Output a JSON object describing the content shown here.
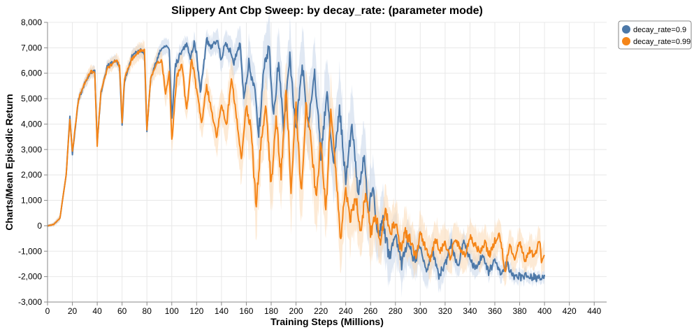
{
  "chart_data": {
    "type": "line",
    "title": "Slippery Ant Cbp Sweep: by decay_rate: (parameter mode)",
    "xlabel": "Training Steps (Millions)",
    "ylabel": "Charts/Mean Episodic Return",
    "xlim": [
      0,
      450
    ],
    "ylim": [
      -3000,
      8000
    ],
    "x_ticks": [
      "0",
      "20",
      "40",
      "60",
      "80",
      "100",
      "120",
      "140",
      "160",
      "180",
      "200",
      "220",
      "240",
      "260",
      "280",
      "300",
      "320",
      "340",
      "360",
      "380",
      "400",
      "420",
      "440"
    ],
    "y_ticks": [
      "-3,000",
      "-2,000",
      "-1,000",
      "0",
      "1,000",
      "2,000",
      "3,000",
      "4,000",
      "5,000",
      "6,000",
      "7,000",
      "8,000"
    ],
    "grid": true,
    "legend_position": "top-right",
    "series": [
      {
        "name": "decay_rate=0.9",
        "color": "#4c78a8",
        "band_color": "#c6d6ea",
        "points": [
          [
            0,
            0
          ],
          [
            5,
            50
          ],
          [
            10,
            300
          ],
          [
            15,
            2000
          ],
          [
            18,
            4300
          ],
          [
            20,
            2800
          ],
          [
            25,
            5000
          ],
          [
            30,
            5600
          ],
          [
            35,
            6000
          ],
          [
            38,
            6100
          ],
          [
            40,
            3300
          ],
          [
            43,
            5200
          ],
          [
            48,
            6300
          ],
          [
            55,
            6500
          ],
          [
            58,
            6200
          ],
          [
            60,
            3900
          ],
          [
            62,
            5700
          ],
          [
            68,
            6700
          ],
          [
            75,
            6900
          ],
          [
            78,
            6800
          ],
          [
            80,
            3700
          ],
          [
            83,
            5800
          ],
          [
            90,
            6800
          ],
          [
            95,
            7100
          ],
          [
            98,
            6900
          ],
          [
            100,
            4200
          ],
          [
            103,
            6300
          ],
          [
            108,
            6900
          ],
          [
            112,
            7200
          ],
          [
            115,
            6600
          ],
          [
            118,
            7200
          ],
          [
            120,
            6800
          ],
          [
            123,
            5200
          ],
          [
            128,
            7300
          ],
          [
            132,
            7000
          ],
          [
            137,
            7300
          ],
          [
            140,
            6500
          ],
          [
            143,
            7200
          ],
          [
            148,
            6800
          ],
          [
            150,
            6400
          ],
          [
            155,
            7200
          ],
          [
            158,
            5000
          ],
          [
            162,
            6400
          ],
          [
            166,
            5600
          ],
          [
            170,
            3600
          ],
          [
            174,
            6000
          ],
          [
            178,
            7100
          ],
          [
            182,
            4300
          ],
          [
            186,
            6500
          ],
          [
            190,
            3800
          ],
          [
            195,
            6600
          ],
          [
            200,
            3700
          ],
          [
            205,
            6300
          ],
          [
            210,
            4000
          ],
          [
            215,
            6000
          ],
          [
            220,
            2800
          ],
          [
            225,
            5200
          ],
          [
            230,
            2400
          ],
          [
            235,
            4600
          ],
          [
            240,
            1800
          ],
          [
            245,
            4000
          ],
          [
            250,
            1200
          ],
          [
            255,
            2800
          ],
          [
            258,
            500
          ],
          [
            262,
            1500
          ],
          [
            266,
            -500
          ],
          [
            270,
            200
          ],
          [
            275,
            -1200
          ],
          [
            280,
            -300
          ],
          [
            285,
            -1500
          ],
          [
            290,
            -600
          ],
          [
            295,
            -1300
          ],
          [
            300,
            -900
          ],
          [
            305,
            -1800
          ],
          [
            310,
            -1000
          ],
          [
            315,
            -2000
          ],
          [
            320,
            -1500
          ],
          [
            325,
            -700
          ],
          [
            330,
            -1600
          ],
          [
            335,
            -600
          ],
          [
            340,
            -1300
          ],
          [
            345,
            -1700
          ],
          [
            350,
            -1100
          ],
          [
            355,
            -1800
          ],
          [
            360,
            -1400
          ],
          [
            365,
            -1900
          ],
          [
            370,
            -1500
          ],
          [
            375,
            -2000
          ],
          [
            380,
            -2000
          ],
          [
            385,
            -2000
          ],
          [
            390,
            -2000
          ],
          [
            395,
            -2050
          ],
          [
            400,
            -2000
          ]
        ],
        "band_width": [
          [
            0,
            30
          ],
          [
            20,
            200
          ],
          [
            60,
            200
          ],
          [
            100,
            300
          ],
          [
            140,
            400
          ],
          [
            160,
            900
          ],
          [
            200,
            1300
          ],
          [
            240,
            1400
          ],
          [
            280,
            900
          ],
          [
            320,
            500
          ],
          [
            360,
            300
          ],
          [
            400,
            200
          ]
        ]
      },
      {
        "name": "decay_rate=0.99",
        "color": "#f58518",
        "band_color": "#fbd9b3",
        "points": [
          [
            0,
            0
          ],
          [
            5,
            50
          ],
          [
            10,
            300
          ],
          [
            15,
            2000
          ],
          [
            18,
            4200
          ],
          [
            20,
            2900
          ],
          [
            25,
            5000
          ],
          [
            30,
            5600
          ],
          [
            35,
            6100
          ],
          [
            38,
            6000
          ],
          [
            40,
            3200
          ],
          [
            43,
            5300
          ],
          [
            48,
            6200
          ],
          [
            55,
            6500
          ],
          [
            58,
            6300
          ],
          [
            60,
            4100
          ],
          [
            62,
            5800
          ],
          [
            68,
            6600
          ],
          [
            75,
            6900
          ],
          [
            78,
            6900
          ],
          [
            80,
            3800
          ],
          [
            83,
            5800
          ],
          [
            88,
            6400
          ],
          [
            92,
            6500
          ],
          [
            95,
            5200
          ],
          [
            98,
            6000
          ],
          [
            100,
            3300
          ],
          [
            104,
            5800
          ],
          [
            108,
            6400
          ],
          [
            112,
            4500
          ],
          [
            116,
            6600
          ],
          [
            120,
            5400
          ],
          [
            124,
            4000
          ],
          [
            128,
            5500
          ],
          [
            132,
            4500
          ],
          [
            136,
            3500
          ],
          [
            140,
            4800
          ],
          [
            144,
            3900
          ],
          [
            148,
            5800
          ],
          [
            152,
            4300
          ],
          [
            156,
            2600
          ],
          [
            160,
            4800
          ],
          [
            164,
            3600
          ],
          [
            168,
            700
          ],
          [
            172,
            3400
          ],
          [
            176,
            4600
          ],
          [
            180,
            1600
          ],
          [
            184,
            4200
          ],
          [
            188,
            2000
          ],
          [
            192,
            5300
          ],
          [
            196,
            1500
          ],
          [
            200,
            4800
          ],
          [
            204,
            1200
          ],
          [
            208,
            4600
          ],
          [
            212,
            3400
          ],
          [
            216,
            1100
          ],
          [
            220,
            3300
          ],
          [
            224,
            500
          ],
          [
            228,
            4600
          ],
          [
            232,
            2000
          ],
          [
            236,
            -500
          ],
          [
            240,
            1500
          ],
          [
            244,
            300
          ],
          [
            248,
            1200
          ],
          [
            252,
            -300
          ],
          [
            256,
            1300
          ],
          [
            260,
            -200
          ],
          [
            264,
            500
          ],
          [
            268,
            -700
          ],
          [
            272,
            700
          ],
          [
            276,
            -400
          ],
          [
            280,
            200
          ],
          [
            284,
            -1000
          ],
          [
            288,
            -200
          ],
          [
            292,
            -600
          ],
          [
            296,
            -1200
          ],
          [
            300,
            -300
          ],
          [
            304,
            -800
          ],
          [
            308,
            -1400
          ],
          [
            312,
            -500
          ],
          [
            316,
            -1000
          ],
          [
            320,
            -700
          ],
          [
            324,
            -1300
          ],
          [
            328,
            -500
          ],
          [
            332,
            -900
          ],
          [
            336,
            -1200
          ],
          [
            340,
            -400
          ],
          [
            344,
            -800
          ],
          [
            348,
            -1000
          ],
          [
            352,
            -700
          ],
          [
            356,
            -1200
          ],
          [
            360,
            -600
          ],
          [
            364,
            -300
          ],
          [
            368,
            -1800
          ],
          [
            372,
            -800
          ],
          [
            376,
            -1300
          ],
          [
            380,
            -600
          ],
          [
            384,
            -1400
          ],
          [
            388,
            -900
          ],
          [
            392,
            -1200
          ],
          [
            396,
            -600
          ],
          [
            398,
            -1500
          ],
          [
            400,
            -1100
          ]
        ],
        "band_width": [
          [
            0,
            30
          ],
          [
            20,
            200
          ],
          [
            60,
            250
          ],
          [
            100,
            500
          ],
          [
            140,
            700
          ],
          [
            160,
            1100
          ],
          [
            200,
            1300
          ],
          [
            240,
            1200
          ],
          [
            280,
            800
          ],
          [
            320,
            700
          ],
          [
            360,
            600
          ],
          [
            400,
            500
          ]
        ]
      }
    ]
  }
}
